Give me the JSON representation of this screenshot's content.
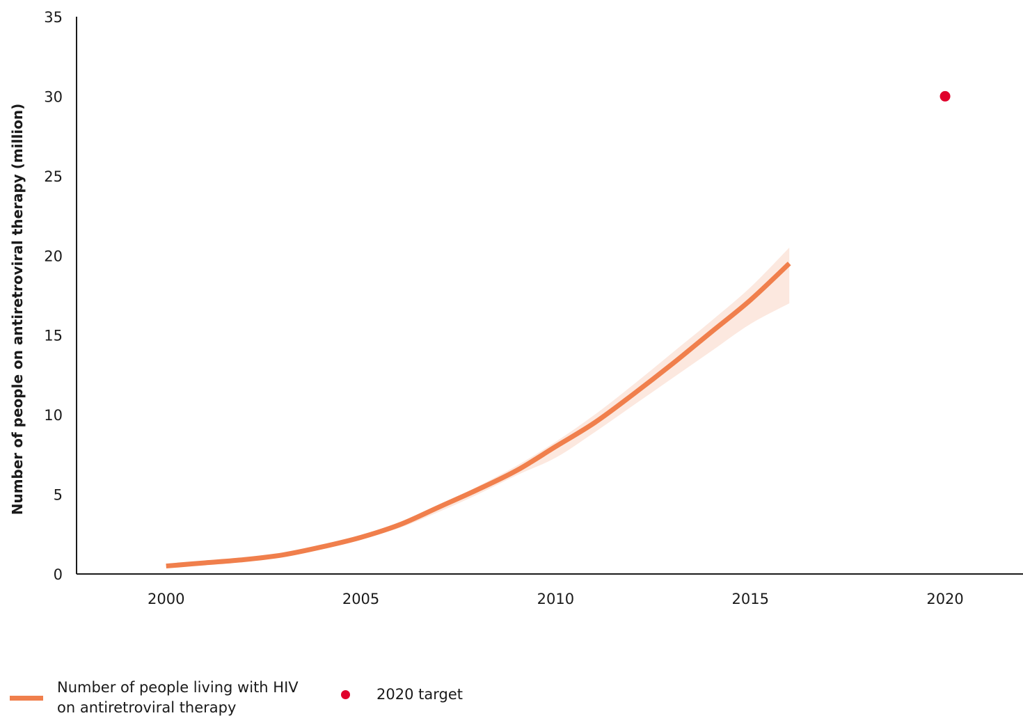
{
  "chart_data": {
    "type": "line",
    "title": "",
    "xlabel": "",
    "ylabel": "Number of people on antiretroviral therapy (million)",
    "xlim": [
      1997.7,
      2022
    ],
    "ylim": [
      0,
      35
    ],
    "x_ticks": [
      "2000",
      "2005",
      "2010",
      "2015",
      "2020"
    ],
    "y_ticks": [
      "0",
      "5",
      "10",
      "15",
      "20",
      "25",
      "30",
      "35"
    ],
    "grid": false,
    "legend_position": "bottom-left",
    "series": [
      {
        "name": "Number of people living with HIV on antiretroviral therapy",
        "type": "line",
        "color": "#f07f4c",
        "x": [
          2000,
          2001,
          2002,
          2003,
          2004,
          2005,
          2006,
          2007,
          2008,
          2009,
          2010,
          2011,
          2012,
          2013,
          2014,
          2015,
          2016
        ],
        "y": [
          0.5,
          0.7,
          0.9,
          1.2,
          1.7,
          2.3,
          3.1,
          4.2,
          5.3,
          6.5,
          8.0,
          9.5,
          11.3,
          13.2,
          15.2,
          17.2,
          19.5
        ],
        "lower": [
          0.4,
          0.6,
          0.8,
          1.1,
          1.6,
          2.2,
          2.9,
          3.9,
          5.0,
          6.2,
          7.3,
          8.9,
          10.6,
          12.3,
          14.0,
          15.7,
          17.0
        ],
        "upper": [
          0.6,
          0.8,
          1.0,
          1.3,
          1.8,
          2.4,
          3.2,
          4.3,
          5.5,
          6.8,
          8.3,
          10.0,
          11.9,
          13.9,
          15.9,
          18.0,
          20.5
        ]
      },
      {
        "name": "2020 target",
        "type": "scatter",
        "color": "#e0002b",
        "x": [
          2020
        ],
        "y": [
          30
        ]
      }
    ]
  },
  "legend": {
    "series_label": "Number of people living with HIV\non antiretroviral therapy",
    "target_label": "2020 target"
  }
}
